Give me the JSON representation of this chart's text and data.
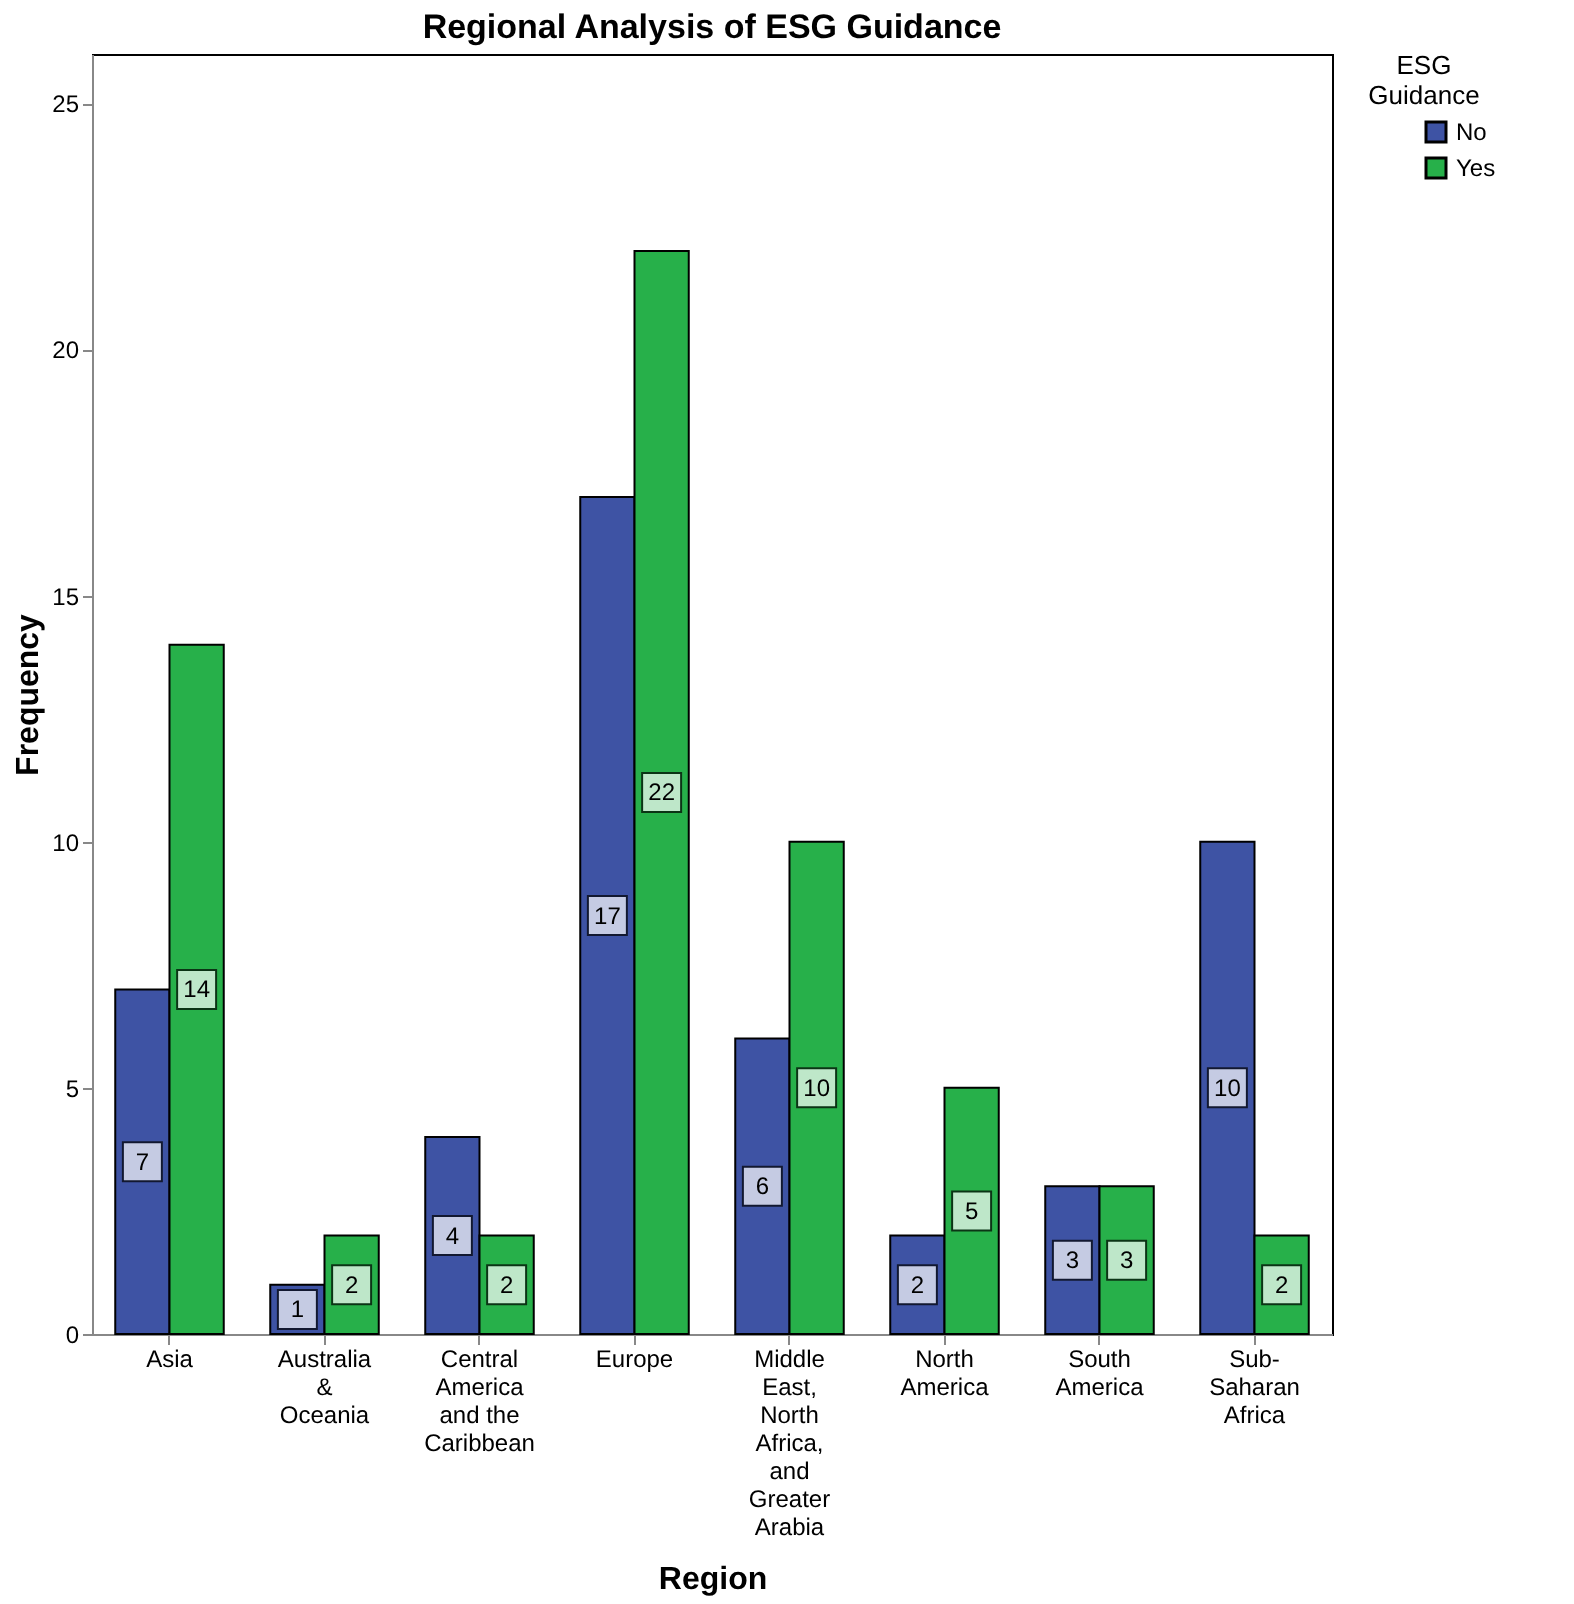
{
  "chart_data": {
    "type": "bar",
    "title": "Regional Analysis of ESG Guidance",
    "xlabel": "Region",
    "ylabel": "Frequency",
    "legend_title": "ESG Guidance",
    "categories": [
      "Asia",
      "Australia\n&\nOceania",
      "Central\nAmerica\nand the\nCaribbean",
      "Europe",
      "Middle\nEast,\nNorth\nAfrica,\nand\nGreater\nArabia",
      "North\nAmerica",
      "South\nAmerica",
      "Sub-\nSaharan\nAfrica"
    ],
    "series": [
      {
        "name": "No",
        "color": "#3e53a4",
        "values": [
          7,
          1,
          4,
          17,
          6,
          2,
          3,
          10
        ]
      },
      {
        "name": "Yes",
        "color": "#27b04a",
        "values": [
          14,
          2,
          2,
          22,
          10,
          5,
          3,
          2
        ]
      }
    ],
    "ylim": [
      0,
      26
    ],
    "yticks": [
      0,
      5,
      10,
      15,
      20,
      25
    ],
    "grid": false,
    "legend": "top right",
    "data_labels": true
  }
}
